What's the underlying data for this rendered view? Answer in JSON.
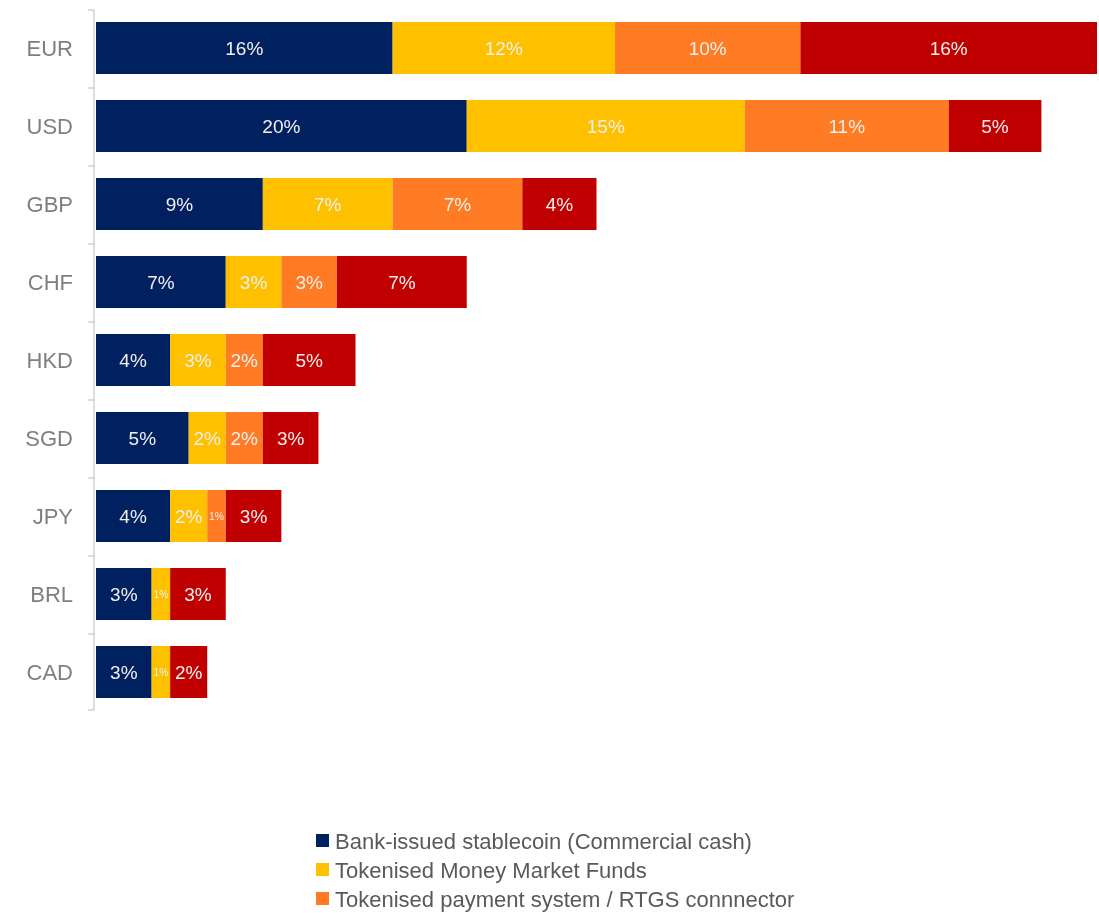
{
  "chart_data": {
    "type": "bar",
    "orientation": "horizontal",
    "stacked": true,
    "legend": "bottom",
    "categories": [
      "EUR",
      "USD",
      "GBP",
      "CHF",
      "HKD",
      "SGD",
      "JPY",
      "BRL",
      "CAD"
    ],
    "series": [
      {
        "name": "Bank-issued stablecoin (Commercial cash)",
        "color": "#002060",
        "values": [
          16,
          20,
          9,
          7,
          4,
          5,
          4,
          3,
          3
        ],
        "value_labels": [
          "16%",
          "20%",
          "9%",
          "7%",
          "4%",
          "5%",
          "4%",
          "3%",
          "3%"
        ]
      },
      {
        "name": "Tokenised Money Market Funds",
        "color": "#ffc000",
        "values": [
          12,
          15,
          7,
          3,
          3,
          2,
          2,
          1,
          1
        ],
        "value_labels": [
          "12%",
          "15%",
          "7%",
          "3%",
          "3%",
          "2%",
          "2%",
          "1%",
          "1%"
        ]
      },
      {
        "name": "Tokenised payment system / RTGS connnector",
        "color": "#ff7b24",
        "values": [
          10,
          11,
          7,
          3,
          2,
          2,
          1,
          null,
          null
        ],
        "value_labels": [
          "10%",
          "11%",
          "7%",
          "3%",
          "2%",
          "2%",
          "1%",
          null,
          null
        ]
      },
      {
        "color": "#c00000",
        "values": [
          16,
          5,
          4,
          7,
          5,
          3,
          3,
          3,
          2
        ],
        "value_labels": [
          "16%",
          "5%",
          "4%",
          "7%",
          "5%",
          "3%",
          "3%",
          "3%",
          "2%"
        ]
      }
    ]
  }
}
